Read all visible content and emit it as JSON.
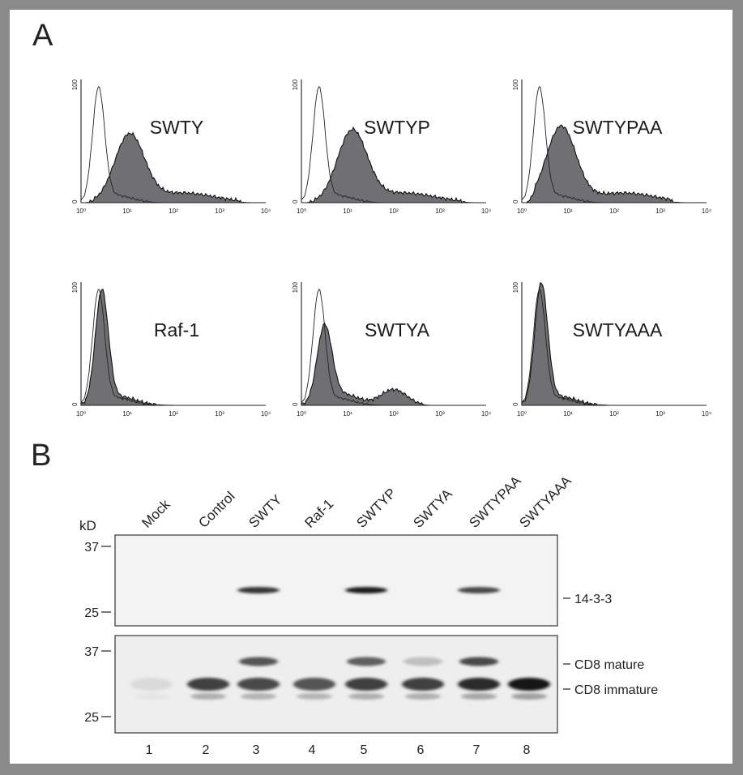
{
  "panel_a": {
    "label": "A",
    "y_tick_min": "0",
    "y_tick_max": "100",
    "x_ticks": [
      "10⁰",
      "10¹",
      "10²",
      "10³",
      "10⁴"
    ],
    "histograms": [
      {
        "name": "SWTY",
        "profile": "positive",
        "peak_log": 1.05,
        "peak_height": 0.55,
        "tail_end_log": 3.4
      },
      {
        "name": "SWTYP",
        "profile": "positive",
        "peak_log": 1.1,
        "peak_height": 0.58,
        "tail_end_log": 3.45
      },
      {
        "name": "SWTYPAA",
        "profile": "positive",
        "peak_log": 0.85,
        "peak_height": 0.62,
        "tail_end_log": 3.2
      },
      {
        "name": "Raf-1",
        "profile": "negative",
        "peak_log": 0.45,
        "peak_height": 0.92,
        "tail_end_log": 2.0
      },
      {
        "name": "SWTYA",
        "profile": "partial",
        "peak_log": 0.5,
        "peak_height": 0.62,
        "tail_end_log": 2.6
      },
      {
        "name": "SWTYAAA",
        "profile": "negative",
        "peak_log": 0.42,
        "peak_height": 0.98,
        "tail_end_log": 1.8
      }
    ]
  },
  "panel_b": {
    "label": "B",
    "kd_label": "kD",
    "lanes": [
      "Mock",
      "Control",
      "SWTY",
      "Raf-1",
      "SWTYP",
      "SWTYA",
      "SWTYPAA",
      "SWTYAAA"
    ],
    "lane_numbers": [
      "1",
      "2",
      "3",
      "4",
      "5",
      "6",
      "7",
      "8"
    ],
    "top_blot": {
      "markers": [
        "37",
        "25"
      ],
      "band_label": "14-3-3",
      "band_intensity": [
        0,
        0,
        0.85,
        0,
        0.95,
        0,
        0.75,
        0
      ]
    },
    "bottom_blot": {
      "markers": [
        "37",
        "25"
      ],
      "mature_label": "CD8 mature",
      "immature_label": "CD8 immature",
      "mature_intensity": [
        0,
        0,
        0.7,
        0,
        0.65,
        0.2,
        0.75,
        0
      ],
      "immature_intensity": [
        0.08,
        0.8,
        0.75,
        0.7,
        0.8,
        0.8,
        0.9,
        1.0
      ]
    }
  }
}
